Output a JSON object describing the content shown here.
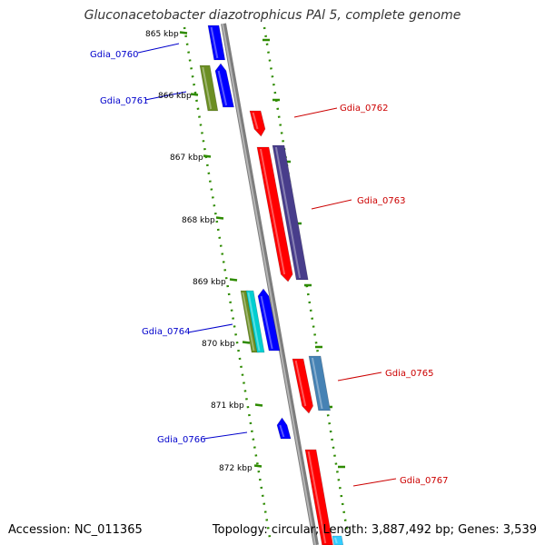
{
  "title": "Gluconacetobacter diazotrophicus PAl 5, complete genome",
  "accession": "Accession: NC_011365",
  "topology": "Topology: circular; Length: 3,887,492 bp; Genes: 3,539",
  "ticks": [
    {
      "label": "865 kbp"
    },
    {
      "label": "866 kbp"
    },
    {
      "label": "867 kbp"
    },
    {
      "label": "868 kbp"
    },
    {
      "label": "869 kbp"
    },
    {
      "label": "870 kbp"
    },
    {
      "label": "871 kbp"
    },
    {
      "label": "872 kbp"
    }
  ],
  "genes": [
    {
      "name": "Gdia_0760",
      "strand": "reverse",
      "color": "#0000cc"
    },
    {
      "name": "Gdia_0761",
      "strand": "reverse",
      "color": "#0000cc"
    },
    {
      "name": "Gdia_0762",
      "strand": "forward",
      "color": "#cc0000"
    },
    {
      "name": "Gdia_0763",
      "strand": "forward",
      "color": "#cc0000"
    },
    {
      "name": "Gdia_0764",
      "strand": "reverse",
      "color": "#0000cc"
    },
    {
      "name": "Gdia_0765",
      "strand": "forward",
      "color": "#cc0000"
    },
    {
      "name": "Gdia_0766",
      "strand": "reverse",
      "color": "#0000cc"
    },
    {
      "name": "Gdia_0767",
      "strand": "forward",
      "color": "#cc0000"
    }
  ],
  "colors": {
    "backbone": "#8a8a8a",
    "dotted_ring": "#2e8b00",
    "forward_cds": "#ff0000",
    "reverse_cds": "#0000ff",
    "cog_olive": "#6b8e23",
    "cog_purple": "#483d8b",
    "cog_steel": "#4682b4",
    "cog_cyan": "#00ced1"
  }
}
